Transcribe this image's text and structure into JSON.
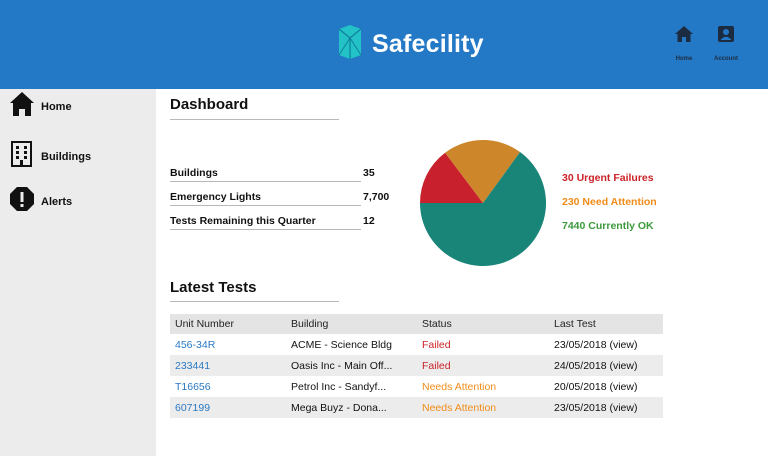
{
  "header": {
    "app_name": "Safecility",
    "logo": "safecility-logo",
    "nav": [
      {
        "label": "Home",
        "icon": "home-icon"
      },
      {
        "label": "Account",
        "icon": "account-icon"
      }
    ]
  },
  "sidebar": {
    "items": [
      {
        "label": "Home",
        "icon": "home-icon"
      },
      {
        "label": "Buildings",
        "icon": "building-icon"
      },
      {
        "label": "Alerts",
        "icon": "alert-icon"
      }
    ]
  },
  "dashboard": {
    "title": "Dashboard",
    "stats": [
      {
        "label": "Buildings",
        "value": "35"
      },
      {
        "label": "Emergency Lights",
        "value": "7,700"
      },
      {
        "label": "Tests Remaining this Quarter",
        "value": "12"
      }
    ]
  },
  "status_summary": {
    "legend": [
      {
        "text": "30 Urgent Failures",
        "color": "#cc2229"
      },
      {
        "text": "230 Need Attention",
        "color": "#f08c1a"
      },
      {
        "text": "7440 Currently OK",
        "color": "#3c9a3c"
      }
    ],
    "pie_colors": [
      "#c8202c",
      "#cd862a",
      "#198578"
    ]
  },
  "chart_data": {
    "type": "pie",
    "labels": [
      "Urgent Failures",
      "Need Attention",
      "Currently OK"
    ],
    "values": [
      30,
      230,
      7440
    ]
  },
  "latest_tests": {
    "title": "Latest Tests",
    "columns": [
      "Unit Number",
      "Building",
      "Status",
      "Last Test"
    ],
    "rows": [
      {
        "unit": "456-34R",
        "building": "ACME - Science Bldg",
        "status": "Failed",
        "status_color": "#cc2229",
        "last_test": "23/05/2018 (view)"
      },
      {
        "unit": "233441",
        "building": "Oasis Inc - Main Off...",
        "status": "Failed",
        "status_color": "#cc2229",
        "last_test": "24/05/2018 (view)"
      },
      {
        "unit": "T16656",
        "building": "Petrol Inc - Sandyf...",
        "status": "Needs Attention",
        "status_color": "#f08c1a",
        "last_test": "20/05/2018 (view)"
      },
      {
        "unit": "607199",
        "building": "Mega Buyz - Dona...",
        "status": "Needs Attention",
        "status_color": "#f08c1a",
        "last_test": "23/05/2018 (view)"
      }
    ]
  }
}
